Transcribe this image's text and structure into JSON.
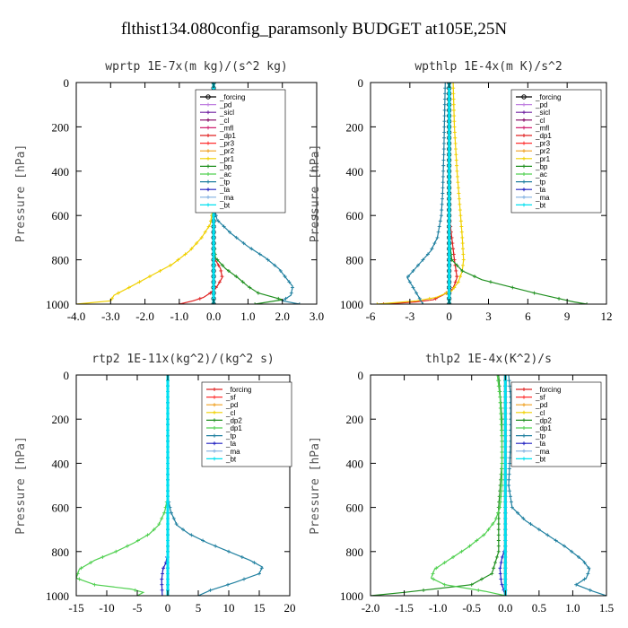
{
  "figure": {
    "title": "flthist134.080config_paramsonly  BUDGET at105E,25N"
  },
  "chart_data": [
    {
      "type": "line",
      "title": "wprtp  1E-7x(m kg)/(s^2 kg)",
      "ylabel": "Pressure [hPa]",
      "xlim": [
        -4.0,
        3.0
      ],
      "xticks": [
        "-4.0",
        "-3.0",
        "-2.0",
        "-1.0",
        "0.0",
        "1.0",
        "2.0",
        "3.0"
      ],
      "ylim": [
        1000,
        0
      ],
      "yticks": [
        "0",
        "200",
        "400",
        "600",
        "800",
        "1000"
      ],
      "legend": {
        "position": "top-right",
        "entries": [
          "_forcing",
          "_pd",
          "_sicl",
          "_cl",
          "_mfl",
          "_dp1",
          "_pr3",
          "_pr2",
          "_pr1",
          "_bp",
          "_ac",
          "_tp",
          "_ta",
          "_ma",
          "_bt"
        ]
      },
      "series": [
        {
          "name": "_forcing",
          "color": "#000000",
          "marker": "o",
          "x": [
            0,
            0
          ],
          "y": [
            0,
            1000
          ]
        },
        {
          "name": "_pd",
          "color": "#c080e0",
          "x": [
            0,
            0
          ],
          "y": [
            0,
            1000
          ]
        },
        {
          "name": "_sicl",
          "color": "#7020a0",
          "x": [
            0,
            0
          ],
          "y": [
            0,
            1000
          ]
        },
        {
          "name": "_cl",
          "color": "#800060",
          "x": [
            0,
            0
          ],
          "y": [
            0,
            1000
          ]
        },
        {
          "name": "_mfl",
          "color": "#d02070",
          "x": [
            0,
            0
          ],
          "y": [
            0,
            1000
          ]
        },
        {
          "name": "_dp1",
          "color": "#e02020",
          "x": [
            0,
            0,
            0,
            0.05,
            0.2,
            0.25,
            0.1,
            -0.1,
            -0.3,
            -0.6,
            -1.0
          ],
          "y": [
            0,
            600,
            760,
            800,
            840,
            880,
            920,
            950,
            970,
            985,
            1000
          ]
        },
        {
          "name": "_pr3",
          "color": "#ff3030",
          "x": [
            0,
            0
          ],
          "y": [
            0,
            1000
          ]
        },
        {
          "name": "_pr2",
          "color": "#f0a020",
          "x": [
            0,
            0
          ],
          "y": [
            0,
            1000
          ]
        },
        {
          "name": "_pr1",
          "color": "#f0d000",
          "x": [
            0,
            0,
            -0.1,
            -0.35,
            -0.7,
            -1.2,
            -1.8,
            -2.4,
            -2.9,
            -3.0,
            -4.0
          ],
          "y": [
            0,
            550,
            640,
            700,
            760,
            820,
            870,
            920,
            960,
            985,
            1000
          ]
        },
        {
          "name": "_bp",
          "color": "#209020",
          "x": [
            0,
            0,
            0.05,
            0.35,
            0.7,
            1.0,
            1.3,
            2.0,
            1.2
          ],
          "y": [
            0,
            700,
            790,
            840,
            880,
            920,
            950,
            980,
            1000
          ]
        },
        {
          "name": "_ac",
          "color": "#50d050",
          "x": [
            0,
            0
          ],
          "y": [
            0,
            1000
          ]
        },
        {
          "name": "_tp",
          "color": "#2080a0",
          "x": [
            0,
            0,
            0.1,
            0.5,
            1.0,
            1.5,
            1.9,
            2.1,
            2.3,
            2.25,
            2.0,
            2.5
          ],
          "y": [
            0,
            550,
            620,
            680,
            740,
            790,
            840,
            880,
            920,
            960,
            985,
            1000
          ]
        },
        {
          "name": "_ta",
          "color": "#2020c0",
          "x": [
            0,
            0
          ],
          "y": [
            0,
            1000
          ]
        },
        {
          "name": "_ma",
          "color": "#80b0e0",
          "x": [
            0,
            0
          ],
          "y": [
            0,
            1000
          ]
        },
        {
          "name": "_bt",
          "color": "#00e0f0",
          "x": [
            0,
            0
          ],
          "y": [
            0,
            1000
          ]
        }
      ]
    },
    {
      "type": "line",
      "title": "wpthlp  1E-4x(m K)/s^2",
      "ylabel": "Pressure [hPa]",
      "xlim": [
        -6,
        12
      ],
      "xticks": [
        "-6",
        "-3",
        "0",
        "3",
        "6",
        "9",
        "12"
      ],
      "ylim": [
        1000,
        0
      ],
      "yticks": [
        "0",
        "200",
        "400",
        "600",
        "800",
        "1000"
      ],
      "legend": {
        "position": "top-right",
        "entries": [
          "_forcing",
          "_pd",
          "_sicl",
          "_cl",
          "_mfl",
          "_dp1",
          "_pr3",
          "_pr2",
          "_pr1",
          "_bp",
          "_ac",
          "_tp",
          "_ta",
          "_ma",
          "_bt"
        ]
      },
      "series": [
        {
          "name": "_forcing",
          "color": "#000000",
          "marker": "o",
          "x": [
            0,
            0
          ],
          "y": [
            0,
            1000
          ]
        },
        {
          "name": "_pd",
          "color": "#c080e0",
          "x": [
            0,
            0
          ],
          "y": [
            0,
            1000
          ]
        },
        {
          "name": "_sicl",
          "color": "#7020a0",
          "x": [
            0,
            0
          ],
          "y": [
            0,
            1000
          ]
        },
        {
          "name": "_cl",
          "color": "#800060",
          "x": [
            0,
            0
          ],
          "y": [
            0,
            1000
          ]
        },
        {
          "name": "_mfl",
          "color": "#d02070",
          "x": [
            0,
            0
          ],
          "y": [
            0,
            1000
          ]
        },
        {
          "name": "_dp1",
          "color": "#e02020",
          "x": [
            0,
            0,
            0.2,
            0.4,
            0.6,
            0.3,
            -0.5,
            -1.2,
            -2.5,
            -5.0
          ],
          "y": [
            0,
            600,
            700,
            800,
            880,
            930,
            960,
            980,
            990,
            1000
          ]
        },
        {
          "name": "_pr3",
          "color": "#ff3030",
          "x": [
            0,
            0
          ],
          "y": [
            0,
            1000
          ]
        },
        {
          "name": "_pr2",
          "color": "#f0a020",
          "x": [
            0,
            0
          ],
          "y": [
            0,
            1000
          ]
        },
        {
          "name": "_pr1",
          "color": "#f0d000",
          "x": [
            0.3,
            0.4,
            0.6,
            0.8,
            1.0,
            1.1,
            1.0,
            0.7,
            0.2,
            -1.0,
            -2.5,
            -5.5
          ],
          "y": [
            0,
            200,
            400,
            550,
            700,
            800,
            850,
            900,
            940,
            970,
            985,
            1000
          ]
        },
        {
          "name": "_bp",
          "color": "#209020",
          "x": [
            0,
            0,
            0.2,
            1.0,
            2.5,
            4.5,
            6.5,
            8.0,
            9.5,
            10.5
          ],
          "y": [
            0,
            700,
            800,
            850,
            890,
            920,
            950,
            970,
            990,
            1000
          ]
        },
        {
          "name": "_ac",
          "color": "#50d050",
          "x": [
            0,
            0
          ],
          "y": [
            0,
            1000
          ]
        },
        {
          "name": "_tp",
          "color": "#2080a0",
          "x": [
            -0.3,
            -0.4,
            -0.5,
            -0.6,
            -0.9,
            -1.4,
            -2.0,
            -2.6,
            -3.2,
            -2.8,
            -2.0
          ],
          "y": [
            0,
            300,
            500,
            600,
            700,
            760,
            800,
            840,
            880,
            920,
            1000
          ]
        },
        {
          "name": "_ta",
          "color": "#2020c0",
          "x": [
            0,
            0
          ],
          "y": [
            0,
            1000
          ]
        },
        {
          "name": "_ma",
          "color": "#80b0e0",
          "x": [
            0,
            0
          ],
          "y": [
            0,
            1000
          ]
        },
        {
          "name": "_bt",
          "color": "#00e0f0",
          "x": [
            0,
            0
          ],
          "y": [
            0,
            1000
          ]
        }
      ]
    },
    {
      "type": "line",
      "title": "rtp2  1E-11x(kg^2)/(kg^2 s)",
      "ylabel": "Pressure [hPa]",
      "xlim": [
        -15,
        20
      ],
      "xticks": [
        "-15",
        "-10",
        "-5",
        "0",
        "5",
        "10",
        "15",
        "20"
      ],
      "ylim": [
        1000,
        0
      ],
      "yticks": [
        "0",
        "200",
        "400",
        "600",
        "800",
        "1000"
      ],
      "legend": {
        "position": "top-right",
        "entries": [
          "_forcing",
          "_sf",
          "_pd",
          "_cl",
          "_dp2",
          "_dp1",
          "_tp",
          "_ta",
          "_ma",
          "_bt"
        ]
      },
      "series": [
        {
          "name": "_forcing",
          "color": "#e02020",
          "x": [
            0,
            0
          ],
          "y": [
            0,
            1000
          ]
        },
        {
          "name": "_sf",
          "color": "#ff3030",
          "x": [
            0,
            0
          ],
          "y": [
            0,
            1000
          ]
        },
        {
          "name": "_pd",
          "color": "#f0a020",
          "x": [
            0,
            0
          ],
          "y": [
            0,
            1000
          ]
        },
        {
          "name": "_cl",
          "color": "#f0d000",
          "x": [
            0,
            0
          ],
          "y": [
            0,
            1000
          ]
        },
        {
          "name": "_dp2",
          "color": "#209020",
          "x": [
            0,
            0
          ],
          "y": [
            0,
            1000
          ]
        },
        {
          "name": "_dp1",
          "color": "#50d050",
          "x": [
            0,
            0,
            -0.5,
            -1.5,
            -3.0,
            -5.5,
            -8.5,
            -12.0,
            -14.5,
            -15.0,
            -12.0,
            -6.0,
            -4.0,
            -5.0
          ],
          "y": [
            0,
            550,
            620,
            680,
            720,
            760,
            800,
            840,
            880,
            920,
            950,
            970,
            985,
            1000
          ]
        },
        {
          "name": "_tp",
          "color": "#2080a0",
          "x": [
            0,
            0,
            0.5,
            1.5,
            3.5,
            6.5,
            10.0,
            13.5,
            15.5,
            15.0,
            11.0,
            7.0,
            5.0
          ],
          "y": [
            0,
            550,
            620,
            680,
            720,
            760,
            800,
            840,
            870,
            900,
            940,
            975,
            1000
          ]
        },
        {
          "name": "_ta",
          "color": "#2020c0",
          "x": [
            0,
            0,
            -0.3,
            -0.8,
            -1.0,
            -0.9
          ],
          "y": [
            0,
            800,
            850,
            880,
            930,
            1000
          ]
        },
        {
          "name": "_ma",
          "color": "#80b0e0",
          "x": [
            0,
            0
          ],
          "y": [
            0,
            1000
          ]
        },
        {
          "name": "_bt",
          "color": "#00e0f0",
          "x": [
            0,
            0
          ],
          "y": [
            0,
            1000
          ]
        }
      ]
    },
    {
      "type": "line",
      "title": "thlp2  1E-4x(K^2)/s",
      "ylabel": "Pressure [hPa]",
      "xlim": [
        -2.0,
        1.5
      ],
      "xticks": [
        "-2.0",
        "-1.5",
        "-1.0",
        "-0.5",
        "0.0",
        "0.5",
        "1.0",
        "1.5"
      ],
      "ylim": [
        1000,
        0
      ],
      "yticks": [
        "0",
        "200",
        "400",
        "600",
        "800",
        "1000"
      ],
      "legend": {
        "position": "top-right",
        "entries": [
          "_forcing",
          "_sf",
          "_pd",
          "_cl",
          "_dp2",
          "_dp1",
          "_tp",
          "_ta",
          "_ma",
          "_bt"
        ]
      },
      "series": [
        {
          "name": "_forcing",
          "color": "#e02020",
          "x": [
            0,
            0
          ],
          "y": [
            0,
            1000
          ]
        },
        {
          "name": "_sf",
          "color": "#ff3030",
          "x": [
            0,
            0
          ],
          "y": [
            0,
            1000
          ]
        },
        {
          "name": "_pd",
          "color": "#f0a020",
          "x": [
            0,
            0
          ],
          "y": [
            0,
            1000
          ]
        },
        {
          "name": "_cl",
          "color": "#f0d000",
          "x": [
            0,
            0
          ],
          "y": [
            0,
            1000
          ]
        },
        {
          "name": "_dp2",
          "color": "#209020",
          "x": [
            -0.1,
            -0.05,
            -0.05,
            -0.1,
            -0.1,
            -0.2,
            -0.5,
            -1.5,
            -2.0
          ],
          "y": [
            0,
            200,
            400,
            600,
            800,
            900,
            950,
            985,
            1000
          ]
        },
        {
          "name": "_dp1",
          "color": "#50d050",
          "x": [
            -0.12,
            -0.08,
            -0.05,
            -0.05,
            -0.08,
            -0.15,
            -0.3,
            -0.55,
            -0.85,
            -1.05,
            -1.1,
            -0.9,
            -0.3,
            0.0
          ],
          "y": [
            0,
            100,
            300,
            500,
            600,
            660,
            720,
            780,
            840,
            880,
            920,
            950,
            980,
            1000
          ]
        },
        {
          "name": "_tp",
          "color": "#2080a0",
          "x": [
            0.05,
            0.08,
            0.08,
            0.05,
            0.1,
            0.3,
            0.6,
            0.9,
            1.15,
            1.25,
            1.2,
            1.05,
            1.3,
            1.5
          ],
          "y": [
            0,
            100,
            300,
            500,
            600,
            660,
            720,
            780,
            840,
            880,
            920,
            950,
            980,
            1000
          ]
        },
        {
          "name": "_ta",
          "color": "#2020c0",
          "x": [
            0,
            0,
            -0.05,
            -0.08,
            -0.06,
            0.0
          ],
          "y": [
            0,
            780,
            830,
            880,
            940,
            1000
          ]
        },
        {
          "name": "_ma",
          "color": "#80b0e0",
          "x": [
            0,
            0
          ],
          "y": [
            0,
            1000
          ]
        },
        {
          "name": "_bt",
          "color": "#00e0f0",
          "x": [
            0,
            0
          ],
          "y": [
            0,
            1000
          ]
        }
      ]
    }
  ]
}
